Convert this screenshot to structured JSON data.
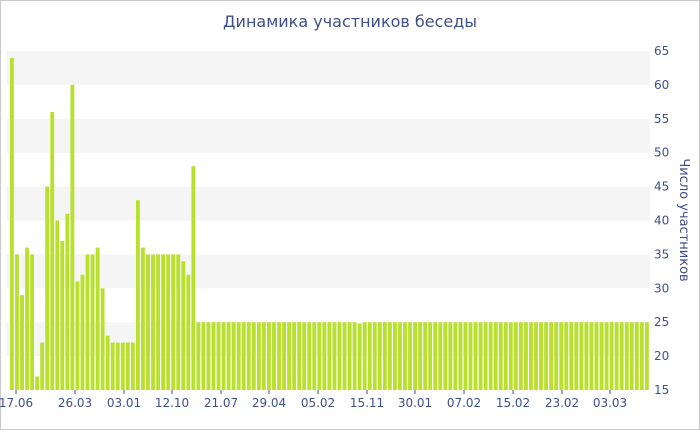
{
  "chart_data": {
    "type": "bar",
    "title": "Динамика участников беседы",
    "xlabel": "",
    "ylabel": "Число участников",
    "ylim": [
      15,
      65
    ],
    "y_ticks": [
      15,
      20,
      25,
      30,
      35,
      40,
      45,
      50,
      55,
      60,
      65
    ],
    "x_tick_labels": [
      "17.06",
      "26.03",
      "03.01",
      "12.10",
      "21.07",
      "29.04",
      "05.02",
      "15.11",
      "30.01",
      "07.02",
      "15.02",
      "23.02",
      "03.03"
    ],
    "grid": "horizontal alternating bands",
    "bar_color": "#b8e02c",
    "values": [
      64,
      35,
      29,
      36,
      35,
      17,
      22,
      45,
      56,
      40,
      37,
      41,
      60,
      31,
      32,
      35,
      35,
      36,
      30,
      23,
      22,
      22,
      22,
      22,
      22,
      43,
      36,
      35,
      35,
      35,
      35,
      35,
      35,
      35,
      34,
      32,
      48,
      25,
      25,
      25,
      25,
      25,
      25,
      25,
      25,
      25,
      25,
      25,
      25,
      25,
      25,
      25,
      25,
      25,
      25,
      25,
      25,
      25,
      25,
      25,
      25,
      25,
      25,
      25,
      25,
      25,
      25,
      25,
      25,
      24.8,
      25,
      25,
      25,
      25,
      25,
      25,
      25,
      25,
      25,
      25,
      25,
      25,
      25,
      25,
      25,
      25,
      25,
      25,
      25,
      25,
      25,
      25,
      25,
      25,
      25,
      25,
      25,
      25,
      25,
      25,
      25,
      25,
      25,
      25,
      25,
      25,
      25,
      25,
      25,
      25,
      25,
      25,
      25,
      25,
      25,
      25,
      25,
      25,
      25,
      25,
      25,
      25,
      25,
      25,
      25,
      25,
      25
    ]
  }
}
